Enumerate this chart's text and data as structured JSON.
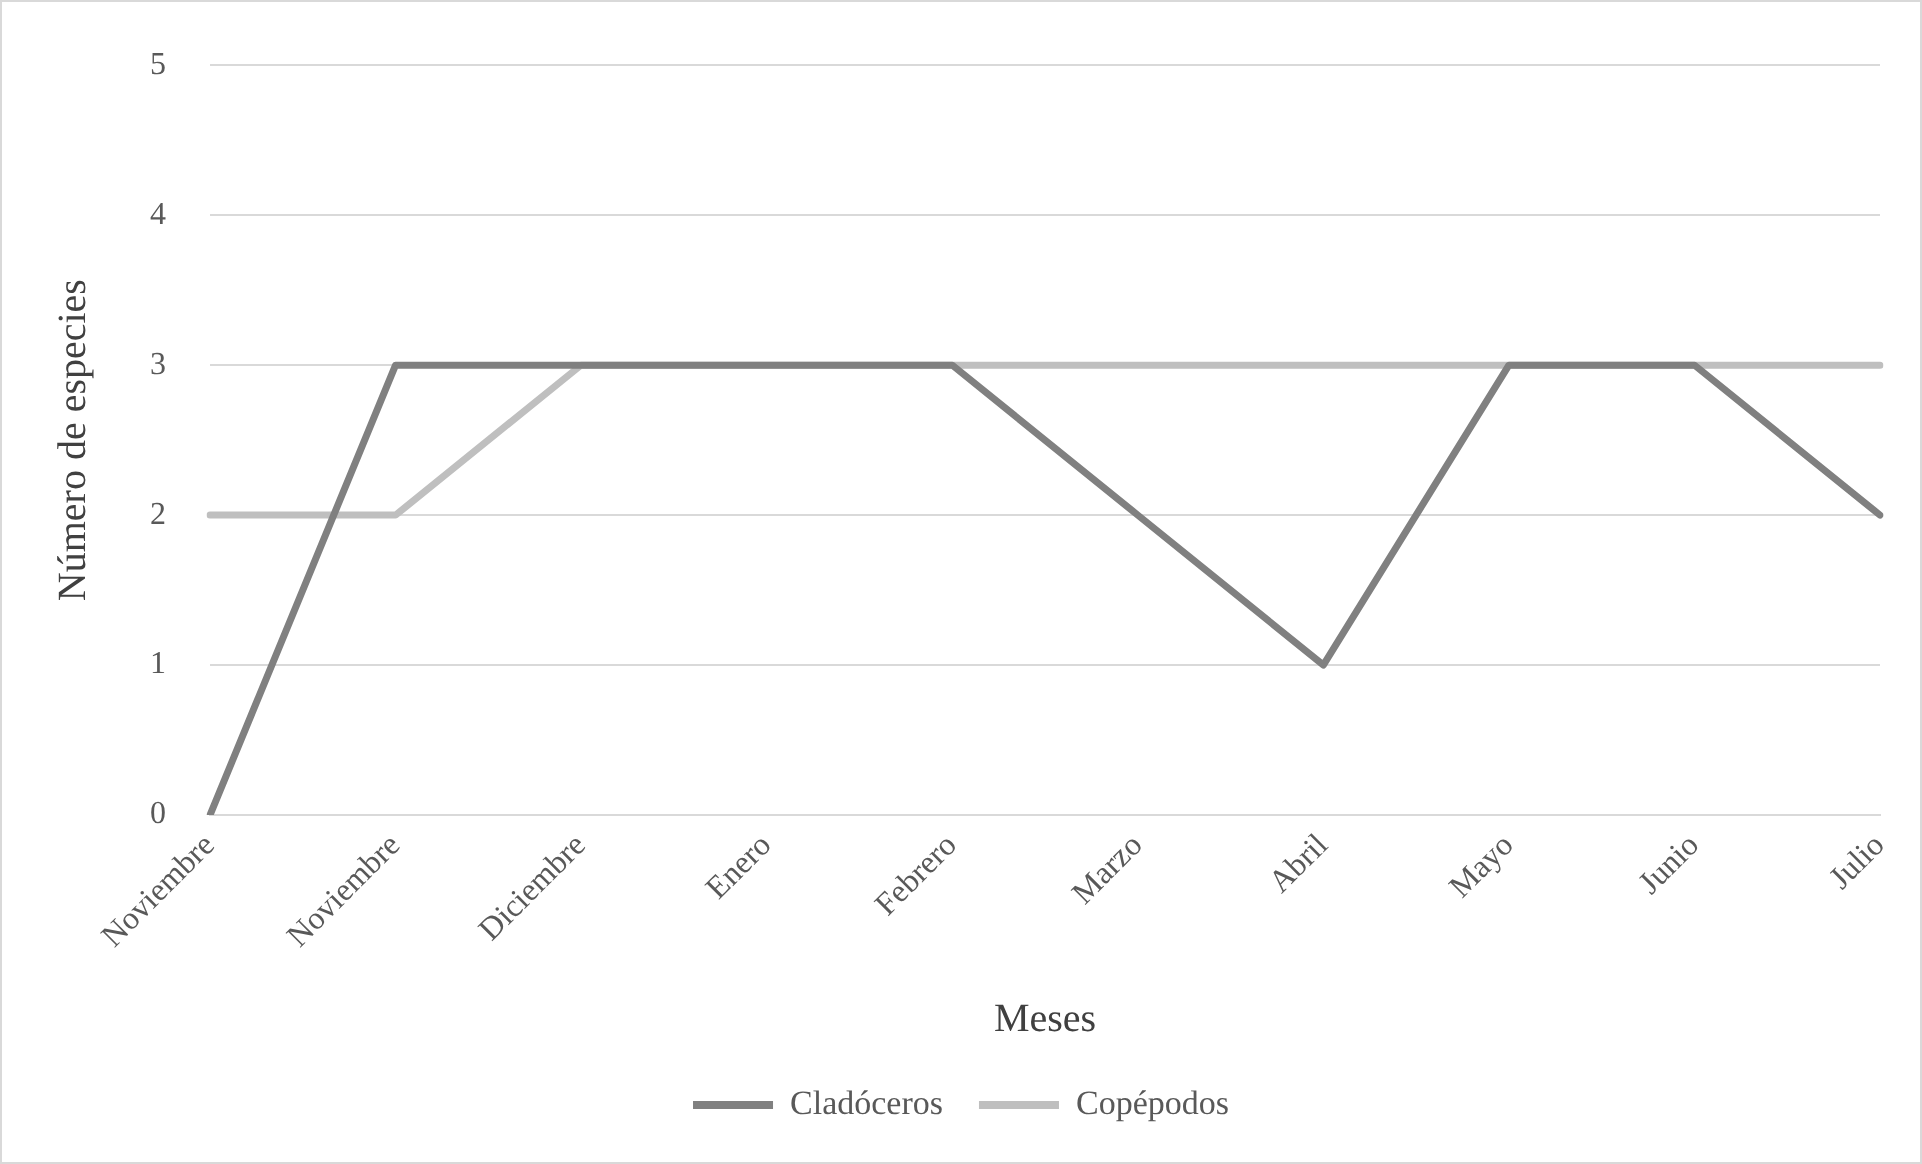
{
  "chart_data": {
    "type": "line",
    "xlabel": "Meses",
    "ylabel": "Número de especies",
    "categories": [
      "Noviembre",
      "Noviembre",
      "Diciembre",
      "Enero",
      "Febrero",
      "Marzo",
      "Abril",
      "Mayo",
      "Junio",
      "Julio"
    ],
    "series": [
      {
        "name": "Cladóceros",
        "color": "#808080",
        "values": [
          0,
          3,
          3,
          3,
          3,
          2,
          1,
          3,
          3,
          2
        ]
      },
      {
        "name": "Copépodos",
        "color": "#bfbfbf",
        "values": [
          2,
          2,
          3,
          3,
          3,
          3,
          3,
          3,
          3,
          3
        ]
      }
    ],
    "ylim": [
      0,
      5
    ],
    "yticks": [
      0,
      1,
      2,
      3,
      4,
      5
    ],
    "grid": "y",
    "legend": "bottom",
    "marker": "none",
    "line_style": "solid"
  }
}
